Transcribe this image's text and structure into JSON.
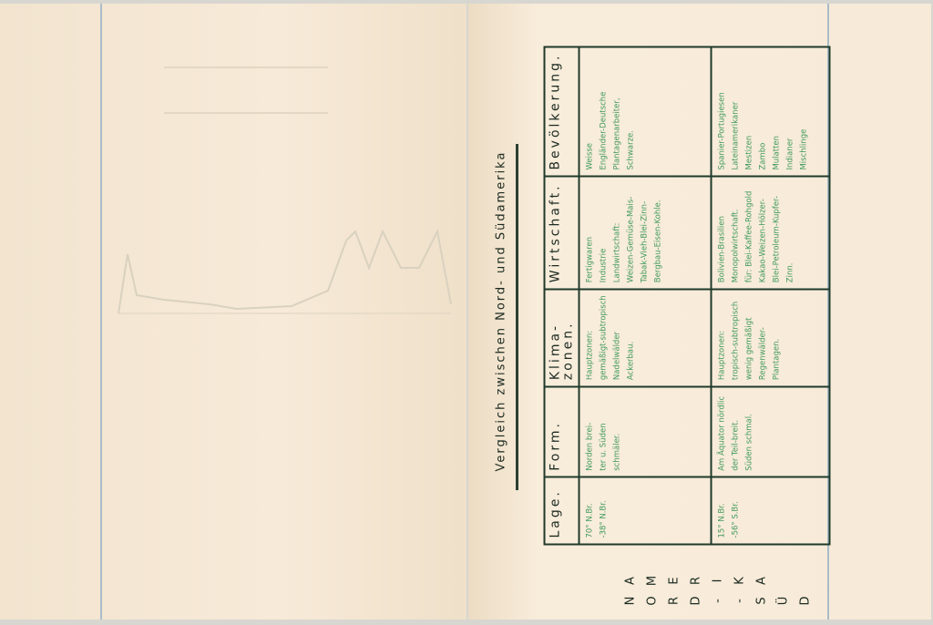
{
  "title": "Vergleich zwischen Nord- und Südamerika",
  "headers": [
    "Lage.",
    "Form.",
    "Klima-zonen.",
    "Wirtschaft.",
    "Bevölkerung."
  ],
  "rows": [
    {
      "name": "Nord",
      "cells": [
        [
          "70° N.Br.",
          "-38° N.Br."
        ],
        [
          "Norden brei-",
          "ter u. Süden",
          "schmäler."
        ],
        [
          "Hauptzonen:",
          "gemäßigt-subtropisch",
          "Nadelwälder",
          "Ackerbau."
        ],
        [
          "Fertigwaren",
          "Industrie",
          "Landwirtschaft:",
          "Weizen-Gemüse-Mais-",
          "Tabak-Vieh-Blei-Zinn-",
          "Bergbau-Eisen-Kohle."
        ],
        [
          "Weisse",
          "Engländer-Deutsche",
          "Plantagenarbeiter,",
          "Schwarze."
        ]
      ]
    },
    {
      "name": "Süd",
      "cells": [
        [
          "15° N.Br.",
          "-56° S.Br."
        ],
        [
          "Am Äquator nördlic",
          "der Teil-breit.",
          "Süden schmal."
        ],
        [
          "Hauptzonen:",
          "tropisch-subtropisch",
          "wenig gemäßigt",
          "Regenwälder-",
          "Plantagen."
        ],
        [
          "Bolivien-Brasilien",
          "Monopolwirtschaft.",
          "für: Blei-Kaffee-Rohgold",
          "Kakao-Weizen-Hölzer-",
          "Blei-Petroleum-Kupfer-",
          "Zinn."
        ],
        [
          "Spanier-Portugiesen",
          "Lateinamerikaner",
          "Mestizen",
          "Zambo",
          "Mulatten",
          "Indianer",
          "Mischlinge"
        ]
      ]
    }
  ],
  "side_label": {
    "top": [
      "A",
      "M",
      "E",
      "R",
      "I",
      "K",
      "A"
    ],
    "bottom": [
      "N",
      "O",
      "R",
      "D",
      "-",
      "-",
      "S",
      "Ü",
      "D"
    ]
  }
}
